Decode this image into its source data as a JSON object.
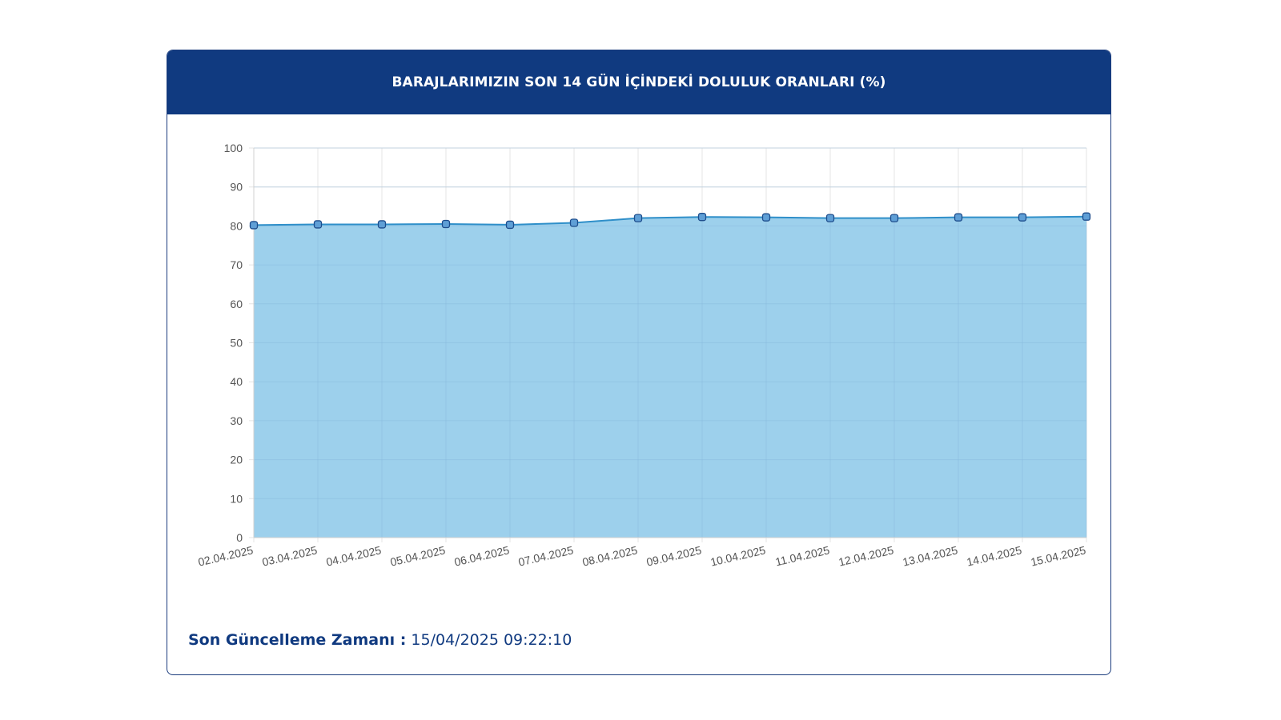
{
  "header": {
    "title": "BARAJLARIMIZIN SON 14 GÜN İÇİNDEKİ DOLULUK ORANLARI (%)"
  },
  "footer": {
    "label": "Son Güncelleme Zamanı :",
    "value": "15/04/2025 09:22:10"
  },
  "colors": {
    "header_bg": "#103a80",
    "area_fill": "#9dd0ec",
    "line": "#2f8fc9",
    "marker_fill": "#5f9fd6",
    "marker_stroke": "#1e4d8c"
  },
  "chart_data": {
    "type": "area",
    "title": "BARAJLARIMIZIN SON 14 GÜN İÇİNDEKİ DOLULUK ORANLARI (%)",
    "categories": [
      "02.04.2025",
      "03.04.2025",
      "04.04.2025",
      "05.04.2025",
      "06.04.2025",
      "07.04.2025",
      "08.04.2025",
      "09.04.2025",
      "10.04.2025",
      "11.04.2025",
      "12.04.2025",
      "13.04.2025",
      "14.04.2025",
      "15.04.2025"
    ],
    "values": [
      80.2,
      80.4,
      80.4,
      80.5,
      80.3,
      80.8,
      82.0,
      82.3,
      82.2,
      82.0,
      82.0,
      82.2,
      82.2,
      82.4
    ],
    "y_ticks": [
      "0",
      "10",
      "20",
      "30",
      "40",
      "50",
      "60",
      "70",
      "80",
      "90",
      "100"
    ],
    "ylim": [
      0,
      100
    ],
    "grid": true,
    "legend": "none",
    "xlabel": "",
    "ylabel": ""
  }
}
